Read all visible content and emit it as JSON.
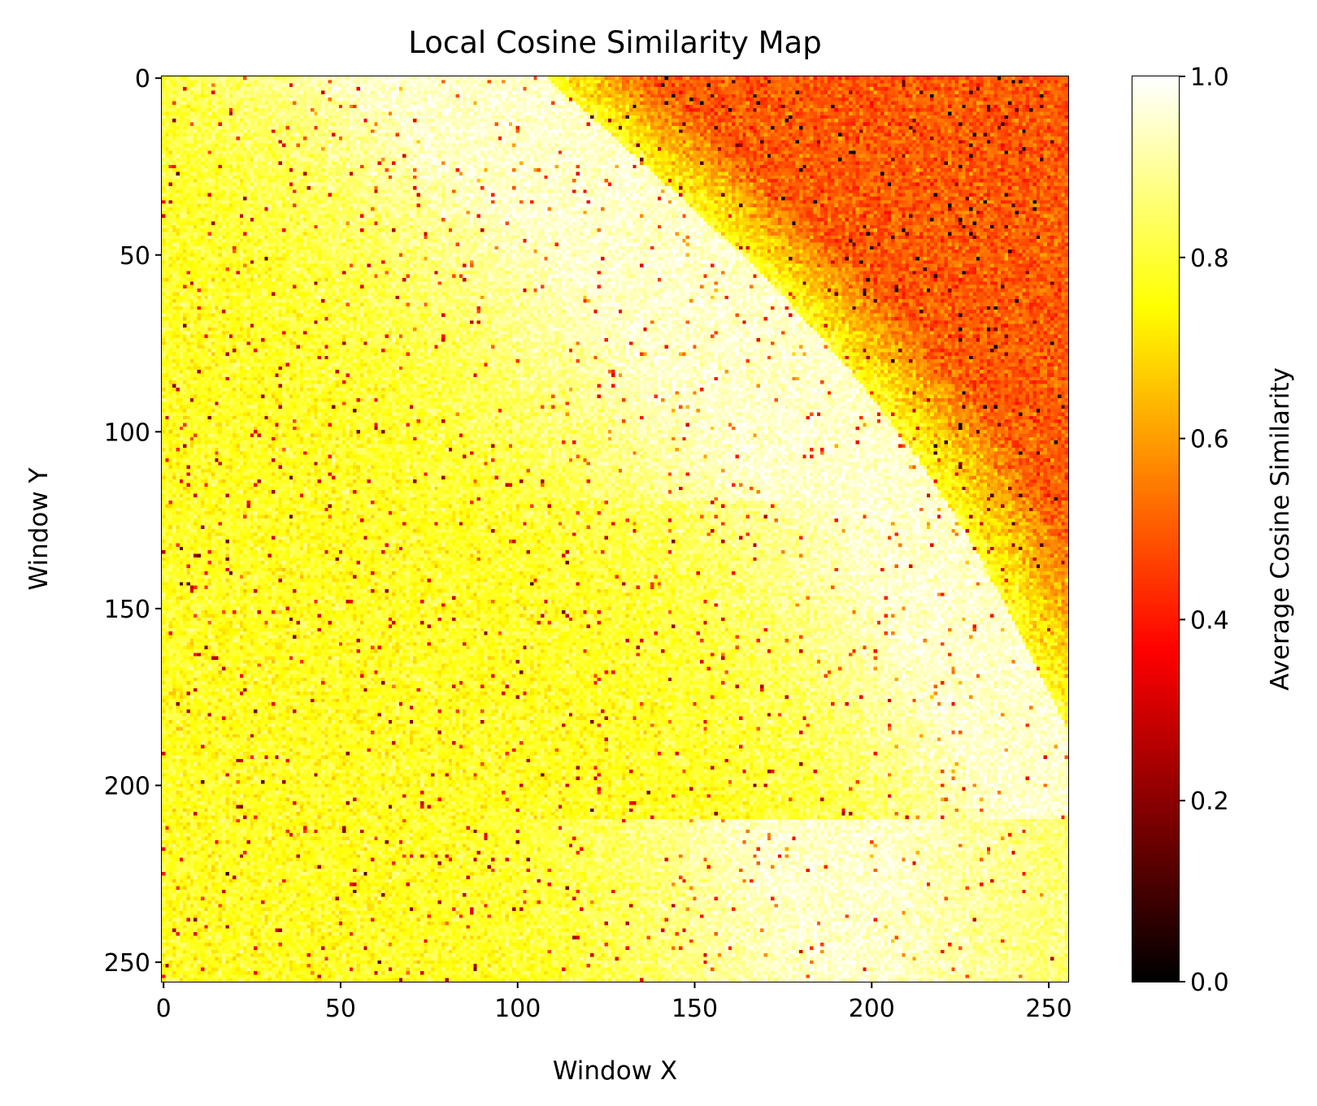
{
  "chart_data": {
    "type": "heatmap",
    "title": "Local Cosine Similarity Map",
    "xlabel": "Window X",
    "ylabel": "Window Y",
    "xlim": [
      0,
      256
    ],
    "ylim": [
      256,
      0
    ],
    "grid_size": [
      256,
      256
    ],
    "xticks": [
      0,
      50,
      100,
      150,
      200,
      250
    ],
    "yticks": [
      0,
      50,
      100,
      150,
      200,
      250
    ],
    "colormap": "hot",
    "colorbar": {
      "label": "Average Cosine Similarity",
      "range": [
        0.0,
        1.0
      ],
      "ticks": [
        "0.0",
        "0.2",
        "0.4",
        "0.6",
        "0.8",
        "1.0"
      ]
    },
    "regions": [
      {
        "area": "top-right",
        "approx_mean": 0.5
      },
      {
        "area": "diagonal band center",
        "approx_mean": 0.95
      },
      {
        "area": "left and lower-left",
        "approx_mean": 0.78
      }
    ],
    "grid": false
  }
}
